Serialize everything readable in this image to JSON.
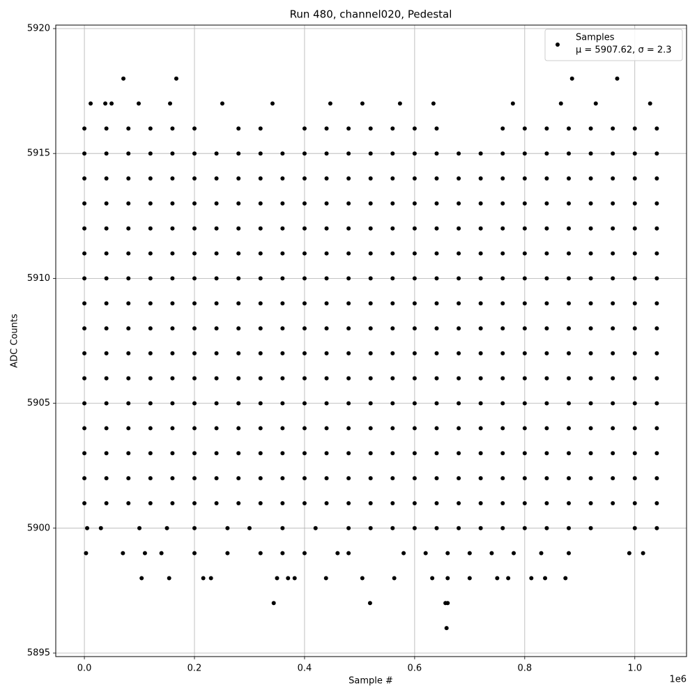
{
  "chart_data": {
    "type": "scatter",
    "title": "Run 480, channel020, Pedestal",
    "x_label": "Sample #",
    "y_label": "ADC Counts",
    "x_offset_label": "1e6",
    "legend_note": "μ = 5907.62, σ = 2.3",
    "legend_position": "upper right",
    "grid": true,
    "xlim": [
      -52000,
      1094000
    ],
    "ylim": [
      5894.86,
      5920.14
    ],
    "xticks": [
      {
        "value": 0,
        "label": "0.0"
      },
      {
        "value": 200000,
        "label": "0.2"
      },
      {
        "value": 400000,
        "label": "0.4"
      },
      {
        "value": 600000,
        "label": "0.6"
      },
      {
        "value": 800000,
        "label": "0.8"
      },
      {
        "value": 1000000,
        "label": "1.0"
      }
    ],
    "yticks": [
      5895,
      5900,
      5905,
      5910,
      5915,
      5920
    ],
    "series": [
      {
        "name": "Samples",
        "color": "#000000",
        "x": [
          0,
          40000,
          80000,
          120000,
          160000,
          200000,
          240000,
          280000,
          320000,
          360000,
          400000,
          440000,
          480000,
          520000,
          560000,
          600000,
          640000,
          680000,
          720000,
          760000,
          800000,
          840000,
          880000,
          920000,
          960000,
          1000000,
          1040000,
          0,
          40000,
          80000,
          120000,
          160000,
          200000,
          240000,
          280000,
          320000,
          360000,
          400000,
          440000,
          480000,
          520000,
          560000,
          600000,
          640000,
          680000,
          720000,
          760000,
          800000,
          840000,
          880000,
          920000,
          960000,
          1000000,
          1040000,
          0,
          40000,
          80000,
          120000,
          160000,
          200000,
          240000,
          280000,
          320000,
          360000,
          400000,
          440000,
          480000,
          520000,
          560000,
          600000,
          640000,
          680000,
          720000,
          760000,
          800000,
          840000,
          880000,
          920000,
          960000,
          1000000,
          1040000,
          0,
          40000,
          80000,
          120000,
          160000,
          200000,
          240000,
          280000,
          320000,
          360000,
          400000,
          440000,
          480000,
          520000,
          560000,
          600000,
          640000,
          680000,
          720000,
          760000,
          800000,
          840000,
          880000,
          920000,
          960000,
          1000000,
          1040000,
          0,
          40000,
          80000,
          120000,
          160000,
          200000,
          240000,
          280000,
          320000,
          360000,
          400000,
          440000,
          480000,
          520000,
          560000,
          600000,
          640000,
          680000,
          720000,
          760000,
          800000,
          840000,
          880000,
          920000,
          960000,
          1000000,
          1040000,
          0,
          40000,
          80000,
          120000,
          160000,
          200000,
          240000,
          280000,
          320000,
          360000,
          400000,
          440000,
          480000,
          520000,
          560000,
          600000,
          640000,
          680000,
          720000,
          760000,
          800000,
          840000,
          880000,
          920000,
          960000,
          1000000,
          1040000,
          0,
          40000,
          80000,
          120000,
          160000,
          200000,
          240000,
          280000,
          320000,
          360000,
          400000,
          440000,
          480000,
          520000,
          560000,
          600000,
          640000,
          680000,
          720000,
          760000,
          800000,
          840000,
          880000,
          920000,
          960000,
          1000000,
          1040000,
          0,
          40000,
          80000,
          120000,
          160000,
          200000,
          240000,
          280000,
          320000,
          360000,
          400000,
          440000,
          480000,
          520000,
          560000,
          600000,
          640000,
          680000,
          720000,
          760000,
          800000,
          840000,
          880000,
          920000,
          960000,
          1000000,
          1040000,
          0,
          40000,
          80000,
          120000,
          160000,
          200000,
          240000,
          280000,
          320000,
          360000,
          400000,
          440000,
          480000,
          520000,
          560000,
          600000,
          640000,
          680000,
          720000,
          760000,
          800000,
          840000,
          880000,
          920000,
          960000,
          1000000,
          1040000,
          0,
          40000,
          80000,
          120000,
          160000,
          200000,
          240000,
          280000,
          320000,
          360000,
          400000,
          440000,
          480000,
          520000,
          560000,
          600000,
          640000,
          680000,
          720000,
          760000,
          800000,
          840000,
          880000,
          920000,
          960000,
          1000000,
          1040000,
          0,
          40000,
          80000,
          120000,
          160000,
          200000,
          240000,
          280000,
          320000,
          360000,
          400000,
          440000,
          480000,
          520000,
          560000,
          600000,
          640000,
          680000,
          720000,
          760000,
          800000,
          840000,
          880000,
          920000,
          960000,
          1000000,
          1040000,
          0,
          40000,
          80000,
          120000,
          160000,
          200000,
          240000,
          280000,
          320000,
          360000,
          400000,
          440000,
          480000,
          520000,
          560000,
          600000,
          640000,
          680000,
          720000,
          760000,
          800000,
          840000,
          880000,
          920000,
          960000,
          1000000,
          1040000,
          0,
          40000,
          80000,
          120000,
          160000,
          200000,
          240000,
          280000,
          320000,
          360000,
          400000,
          440000,
          480000,
          520000,
          560000,
          600000,
          640000,
          680000,
          720000,
          760000,
          800000,
          840000,
          880000,
          920000,
          960000,
          1000000,
          1040000,
          0,
          40000,
          80000,
          120000,
          160000,
          200000,
          240000,
          280000,
          320000,
          360000,
          400000,
          440000,
          480000,
          520000,
          560000,
          600000,
          640000,
          680000,
          720000,
          760000,
          800000,
          840000,
          880000,
          920000,
          960000,
          1000000,
          1040000,
          0,
          40000,
          80000,
          120000,
          160000,
          200000,
          240000,
          280000,
          320000,
          360000,
          400000,
          440000,
          480000,
          520000,
          560000,
          600000,
          640000,
          680000,
          720000,
          760000,
          800000,
          840000,
          880000,
          920000,
          960000,
          1000000,
          1040000,
          0,
          40000,
          80000,
          120000,
          160000,
          200000,
          280000,
          320000,
          400000,
          440000,
          480000,
          520000,
          560000,
          600000,
          640000,
          760000,
          800000,
          840000,
          880000,
          920000,
          960000,
          1000000,
          1040000,
          5000,
          30000,
          100000,
          150000,
          200000,
          260000,
          300000,
          360000,
          420000,
          480000,
          520000,
          560000,
          600000,
          640000,
          680000,
          720000,
          760000,
          800000,
          840000,
          880000,
          920000,
          1000000,
          1040000,
          11400,
          38000,
          49400,
          98700,
          155700,
          250600,
          341800,
          446800,
          505100,
          573400,
          634200,
          778500,
          865800,
          929100,
          1027800,
          70900,
          167000,
          886000,
          968000,
          3000,
          70000,
          110000,
          140000,
          200000,
          260000,
          320000,
          360000,
          400000,
          460000,
          480000,
          580000,
          620000,
          660000,
          700000,
          740000,
          780000,
          830000,
          880000,
          990000,
          1015000,
          104000,
          154000,
          216000,
          230000,
          350000,
          370000,
          382000,
          439000,
          505000,
          563000,
          632000,
          660000,
          700000,
          750000,
          770000,
          812000,
          837000,
          874000,
          344000,
          519000,
          656000,
          660000,
          658000
        ],
        "values": [
          5901,
          5901,
          5901,
          5901,
          5901,
          5901,
          5901,
          5901,
          5901,
          5901,
          5901,
          5901,
          5901,
          5901,
          5901,
          5901,
          5901,
          5901,
          5901,
          5901,
          5901,
          5901,
          5901,
          5901,
          5901,
          5901,
          5901,
          5902,
          5902,
          5902,
          5902,
          5902,
          5902,
          5902,
          5902,
          5902,
          5902,
          5902,
          5902,
          5902,
          5902,
          5902,
          5902,
          5902,
          5902,
          5902,
          5902,
          5902,
          5902,
          5902,
          5902,
          5902,
          5902,
          5902,
          5903,
          5903,
          5903,
          5903,
          5903,
          5903,
          5903,
          5903,
          5903,
          5903,
          5903,
          5903,
          5903,
          5903,
          5903,
          5903,
          5903,
          5903,
          5903,
          5903,
          5903,
          5903,
          5903,
          5903,
          5903,
          5903,
          5903,
          5904,
          5904,
          5904,
          5904,
          5904,
          5904,
          5904,
          5904,
          5904,
          5904,
          5904,
          5904,
          5904,
          5904,
          5904,
          5904,
          5904,
          5904,
          5904,
          5904,
          5904,
          5904,
          5904,
          5904,
          5904,
          5904,
          5904,
          5905,
          5905,
          5905,
          5905,
          5905,
          5905,
          5905,
          5905,
          5905,
          5905,
          5905,
          5905,
          5905,
          5905,
          5905,
          5905,
          5905,
          5905,
          5905,
          5905,
          5905,
          5905,
          5905,
          5905,
          5905,
          5905,
          5905,
          5906,
          5906,
          5906,
          5906,
          5906,
          5906,
          5906,
          5906,
          5906,
          5906,
          5906,
          5906,
          5906,
          5906,
          5906,
          5906,
          5906,
          5906,
          5906,
          5906,
          5906,
          5906,
          5906,
          5906,
          5906,
          5906,
          5906,
          5907,
          5907,
          5907,
          5907,
          5907,
          5907,
          5907,
          5907,
          5907,
          5907,
          5907,
          5907,
          5907,
          5907,
          5907,
          5907,
          5907,
          5907,
          5907,
          5907,
          5907,
          5907,
          5907,
          5907,
          5907,
          5907,
          5907,
          5908,
          5908,
          5908,
          5908,
          5908,
          5908,
          5908,
          5908,
          5908,
          5908,
          5908,
          5908,
          5908,
          5908,
          5908,
          5908,
          5908,
          5908,
          5908,
          5908,
          5908,
          5908,
          5908,
          5908,
          5908,
          5908,
          5908,
          5909,
          5909,
          5909,
          5909,
          5909,
          5909,
          5909,
          5909,
          5909,
          5909,
          5909,
          5909,
          5909,
          5909,
          5909,
          5909,
          5909,
          5909,
          5909,
          5909,
          5909,
          5909,
          5909,
          5909,
          5909,
          5909,
          5909,
          5910,
          5910,
          5910,
          5910,
          5910,
          5910,
          5910,
          5910,
          5910,
          5910,
          5910,
          5910,
          5910,
          5910,
          5910,
          5910,
          5910,
          5910,
          5910,
          5910,
          5910,
          5910,
          5910,
          5910,
          5910,
          5910,
          5910,
          5911,
          5911,
          5911,
          5911,
          5911,
          5911,
          5911,
          5911,
          5911,
          5911,
          5911,
          5911,
          5911,
          5911,
          5911,
          5911,
          5911,
          5911,
          5911,
          5911,
          5911,
          5911,
          5911,
          5911,
          5911,
          5911,
          5911,
          5912,
          5912,
          5912,
          5912,
          5912,
          5912,
          5912,
          5912,
          5912,
          5912,
          5912,
          5912,
          5912,
          5912,
          5912,
          5912,
          5912,
          5912,
          5912,
          5912,
          5912,
          5912,
          5912,
          5912,
          5912,
          5912,
          5912,
          5913,
          5913,
          5913,
          5913,
          5913,
          5913,
          5913,
          5913,
          5913,
          5913,
          5913,
          5913,
          5913,
          5913,
          5913,
          5913,
          5913,
          5913,
          5913,
          5913,
          5913,
          5913,
          5913,
          5913,
          5913,
          5913,
          5913,
          5914,
          5914,
          5914,
          5914,
          5914,
          5914,
          5914,
          5914,
          5914,
          5914,
          5914,
          5914,
          5914,
          5914,
          5914,
          5914,
          5914,
          5914,
          5914,
          5914,
          5914,
          5914,
          5914,
          5914,
          5914,
          5914,
          5914,
          5915,
          5915,
          5915,
          5915,
          5915,
          5915,
          5915,
          5915,
          5915,
          5915,
          5915,
          5915,
          5915,
          5915,
          5915,
          5915,
          5915,
          5915,
          5915,
          5915,
          5915,
          5915,
          5915,
          5915,
          5915,
          5915,
          5915,
          5916,
          5916,
          5916,
          5916,
          5916,
          5916,
          5916,
          5916,
          5916,
          5916,
          5916,
          5916,
          5916,
          5916,
          5916,
          5916,
          5916,
          5916,
          5916,
          5916,
          5916,
          5916,
          5916,
          5900,
          5900,
          5900,
          5900,
          5900,
          5900,
          5900,
          5900,
          5900,
          5900,
          5900,
          5900,
          5900,
          5900,
          5900,
          5900,
          5900,
          5900,
          5900,
          5900,
          5900,
          5900,
          5900,
          5917,
          5917,
          5917,
          5917,
          5917,
          5917,
          5917,
          5917,
          5917,
          5917,
          5917,
          5917,
          5917,
          5917,
          5917,
          5918,
          5918,
          5918,
          5918,
          5899,
          5899,
          5899,
          5899,
          5899,
          5899,
          5899,
          5899,
          5899,
          5899,
          5899,
          5899,
          5899,
          5899,
          5899,
          5899,
          5899,
          5899,
          5899,
          5899,
          5899,
          5898,
          5898,
          5898,
          5898,
          5898,
          5898,
          5898,
          5898,
          5898,
          5898,
          5898,
          5898,
          5898,
          5898,
          5898,
          5898,
          5898,
          5898,
          5897,
          5897,
          5897,
          5897,
          5896
        ]
      }
    ]
  }
}
